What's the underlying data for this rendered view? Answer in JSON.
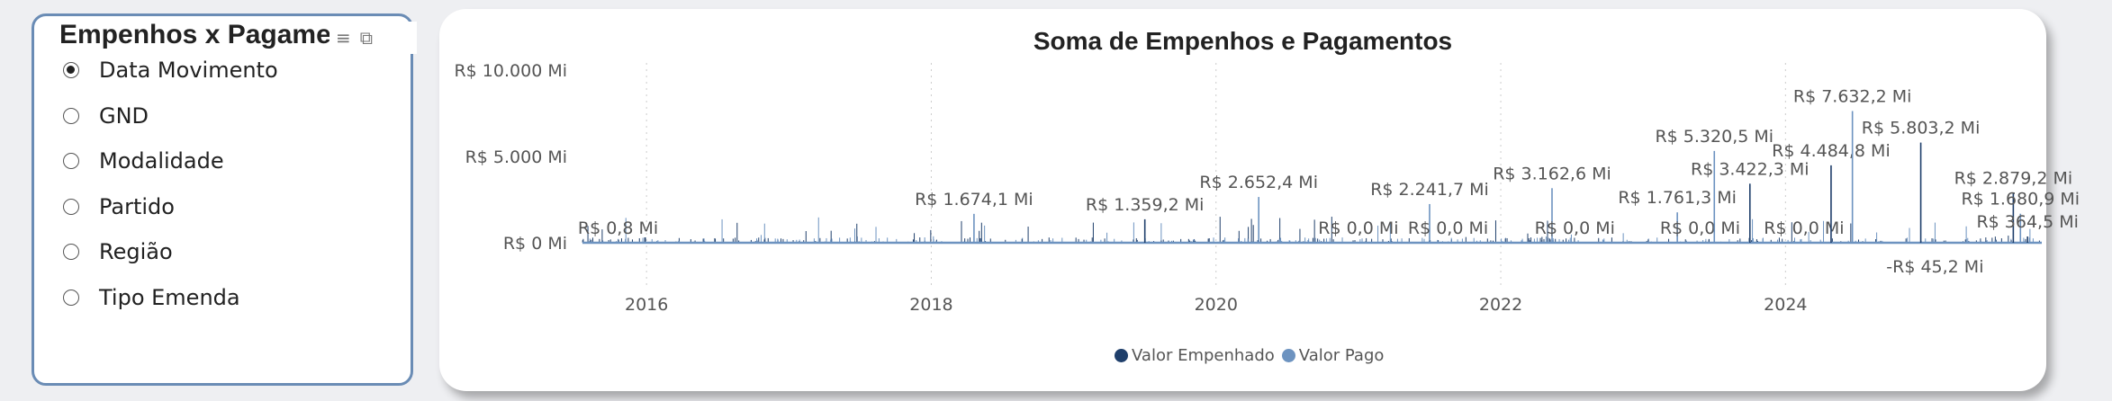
{
  "slicer": {
    "title": "Empenhos x Pagamentos",
    "options": [
      {
        "label": "Data Movimento",
        "selected": true
      },
      {
        "label": "GND",
        "selected": false
      },
      {
        "label": "Modalidade",
        "selected": false
      },
      {
        "label": "Partido",
        "selected": false
      },
      {
        "label": "Região",
        "selected": false
      },
      {
        "label": "Tipo Emenda",
        "selected": false
      }
    ],
    "icons": [
      "filter-icon",
      "focus-mode-icon"
    ]
  },
  "chart_data": {
    "type": "line",
    "title": "Soma de Empenhos e Pagamentos",
    "xlabel": "",
    "ylabel": "",
    "y_ticks": [
      "R$ 0 Mi",
      "R$ 5.000 Mi",
      "R$ 10.000 Mi"
    ],
    "y_tick_values": [
      0,
      5000,
      10000
    ],
    "ylim": [
      0,
      10000
    ],
    "xlim": [
      2015.55,
      2025.8
    ],
    "x_ticks": [
      "2016",
      "2018",
      "2020",
      "2022",
      "2024"
    ],
    "x_tick_values": [
      2016,
      2018,
      2020,
      2022,
      2024
    ],
    "grid": "vertical-dotted",
    "legend_position": "bottom-center",
    "series": [
      {
        "name": "Valor Empenhado",
        "color": "#1f3f6b"
      },
      {
        "name": "Valor Pago",
        "color": "#6d93c0"
      }
    ],
    "labeled_points": [
      {
        "x": 2015.8,
        "value": 0.8,
        "label": "R$ 0,8 Mi"
      },
      {
        "x": 2018.3,
        "value": 1674.1,
        "label": "R$ 1.674,1 Mi"
      },
      {
        "x": 2019.5,
        "value": 1359.2,
        "label": "R$ 1.359,2 Mi"
      },
      {
        "x": 2020.3,
        "value": 2652.4,
        "label": "R$ 2.652,4 Mi"
      },
      {
        "x": 2021.0,
        "value": 0.0,
        "label": "R$ 0,0 Mi"
      },
      {
        "x": 2021.5,
        "value": 2241.7,
        "label": "R$ 2.241,7 Mi"
      },
      {
        "x": 2021.63,
        "value": 0.0,
        "label": "R$ 0,0 Mi"
      },
      {
        "x": 2022.36,
        "value": 3162.6,
        "label": "R$ 3.162,6 Mi"
      },
      {
        "x": 2022.52,
        "value": 0.0,
        "label": "R$ 0,0 Mi"
      },
      {
        "x": 2023.24,
        "value": 1761.3,
        "label": "R$ 1.761,3 Mi"
      },
      {
        "x": 2023.4,
        "value": 0.0,
        "label": "R$ 0,0 Mi"
      },
      {
        "x": 2023.5,
        "value": 5320.5,
        "label": "R$ 5.320,5 Mi"
      },
      {
        "x": 2023.75,
        "value": 3422.3,
        "label": "R$ 3.422,3 Mi"
      },
      {
        "x": 2024.13,
        "value": 0.0,
        "label": "R$ 0,0 Mi"
      },
      {
        "x": 2024.32,
        "value": 4484.8,
        "label": "R$ 4.484,8 Mi"
      },
      {
        "x": 2024.47,
        "value": 7632.2,
        "label": "R$ 7.632,2 Mi"
      },
      {
        "x": 2024.95,
        "value": 5803.2,
        "label": "R$ 5.803,2 Mi"
      },
      {
        "x": 2025.05,
        "value": -45.2,
        "label": "-R$ 45,2 Mi"
      },
      {
        "x": 2025.6,
        "value": 2879.2,
        "label": "R$ 2.879,2 Mi"
      },
      {
        "x": 2025.65,
        "value": 1680.9,
        "label": "R$ 1.680,9 Mi"
      },
      {
        "x": 2025.7,
        "value": 364.5,
        "label": "R$ 364,5 Mi"
      }
    ]
  }
}
